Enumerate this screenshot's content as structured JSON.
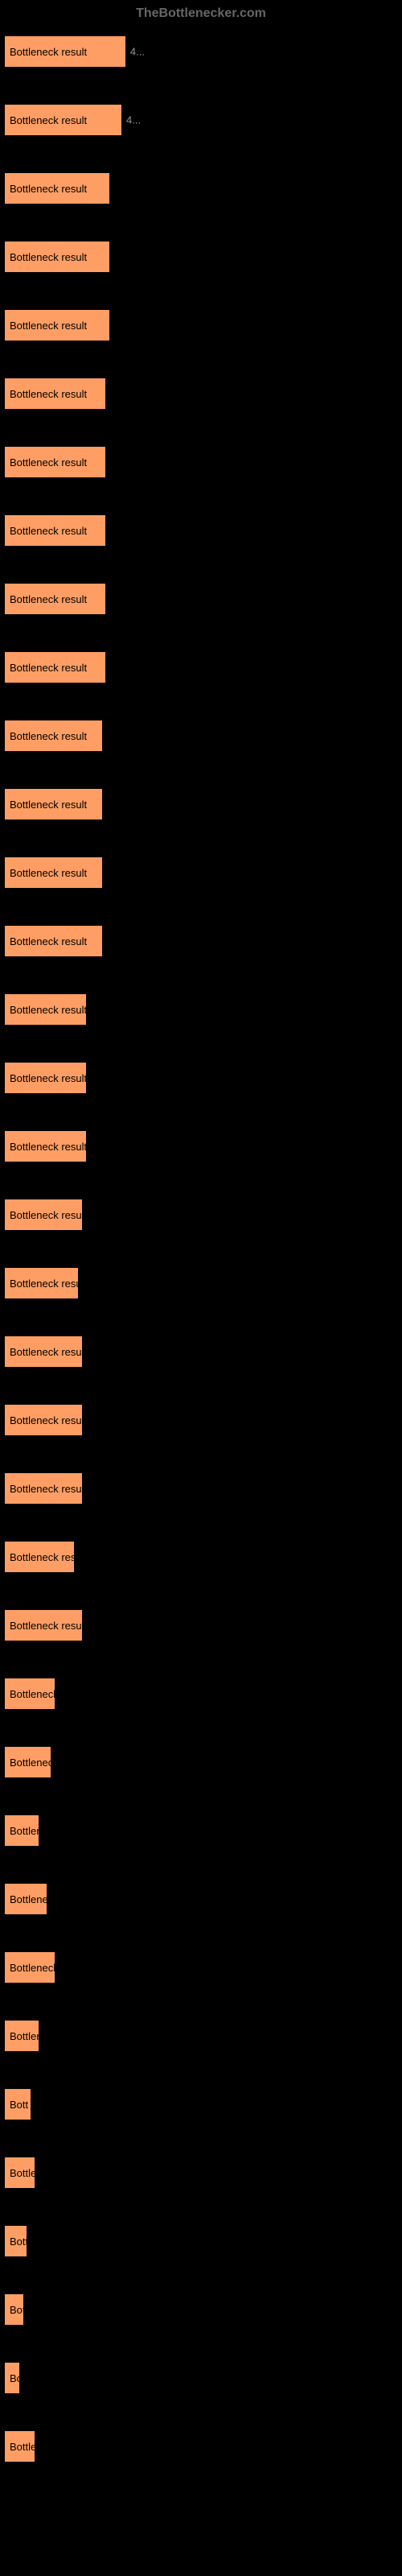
{
  "header": {
    "site_name": "TheBottlenecker.com"
  },
  "chart": {
    "type": "bar",
    "bar_color": "#ff9e64",
    "background_color": "#000000",
    "text_color": "#000000",
    "label_color": "#999999",
    "value_color": "#999999",
    "max_width": 490,
    "bars": [
      {
        "label": "Bottleneck result",
        "value": "4...",
        "width_pct": 31
      },
      {
        "label": "Bottleneck result",
        "value": "4...",
        "width_pct": 30
      },
      {
        "label": "Bottleneck result",
        "value": "",
        "width_pct": 27
      },
      {
        "label": "Bottleneck result",
        "value": "",
        "width_pct": 27
      },
      {
        "label": "Bottleneck result",
        "value": "",
        "width_pct": 27
      },
      {
        "label": "Bottleneck result",
        "value": "",
        "width_pct": 26
      },
      {
        "label": "Bottleneck result",
        "value": "",
        "width_pct": 26
      },
      {
        "label": "Bottleneck result",
        "value": "",
        "width_pct": 26
      },
      {
        "label": "Bottleneck result",
        "value": "",
        "width_pct": 26
      },
      {
        "label": "Bottleneck result",
        "value": "",
        "width_pct": 26
      },
      {
        "label": "Bottleneck result",
        "value": "",
        "width_pct": 25
      },
      {
        "label": "Bottleneck result",
        "value": "",
        "width_pct": 25
      },
      {
        "label": "Bottleneck result",
        "value": "",
        "width_pct": 25
      },
      {
        "label": "Bottleneck result",
        "value": "",
        "width_pct": 25
      },
      {
        "label": "Bottleneck result",
        "value": "",
        "width_pct": 21
      },
      {
        "label": "Bottleneck result",
        "value": "",
        "width_pct": 21
      },
      {
        "label": "Bottleneck result",
        "value": "",
        "width_pct": 21
      },
      {
        "label": "Bottleneck result",
        "value": "",
        "width_pct": 20
      },
      {
        "label": "Bottleneck resu",
        "value": "",
        "width_pct": 19
      },
      {
        "label": "Bottleneck result",
        "value": "",
        "width_pct": 20
      },
      {
        "label": "Bottleneck result",
        "value": "",
        "width_pct": 20
      },
      {
        "label": "Bottleneck result",
        "value": "",
        "width_pct": 20
      },
      {
        "label": "Bottleneck res",
        "value": "",
        "width_pct": 18
      },
      {
        "label": "Bottleneck result",
        "value": "",
        "width_pct": 20
      },
      {
        "label": "Bottleneck",
        "value": "",
        "width_pct": 13
      },
      {
        "label": "Bottlenec",
        "value": "",
        "width_pct": 12
      },
      {
        "label": "Bottler",
        "value": "",
        "width_pct": 9
      },
      {
        "label": "Bottlene",
        "value": "",
        "width_pct": 11
      },
      {
        "label": "Bottleneck",
        "value": "",
        "width_pct": 13
      },
      {
        "label": "Bottler",
        "value": "",
        "width_pct": 9
      },
      {
        "label": "Bott",
        "value": "",
        "width_pct": 7
      },
      {
        "label": "Bottle",
        "value": "",
        "width_pct": 8
      },
      {
        "label": "Bott",
        "value": "",
        "width_pct": 6
      },
      {
        "label": "Bot",
        "value": "",
        "width_pct": 5
      },
      {
        "label": "Bo",
        "value": "",
        "width_pct": 4
      },
      {
        "label": "Bottle",
        "value": "",
        "width_pct": 8
      }
    ]
  }
}
